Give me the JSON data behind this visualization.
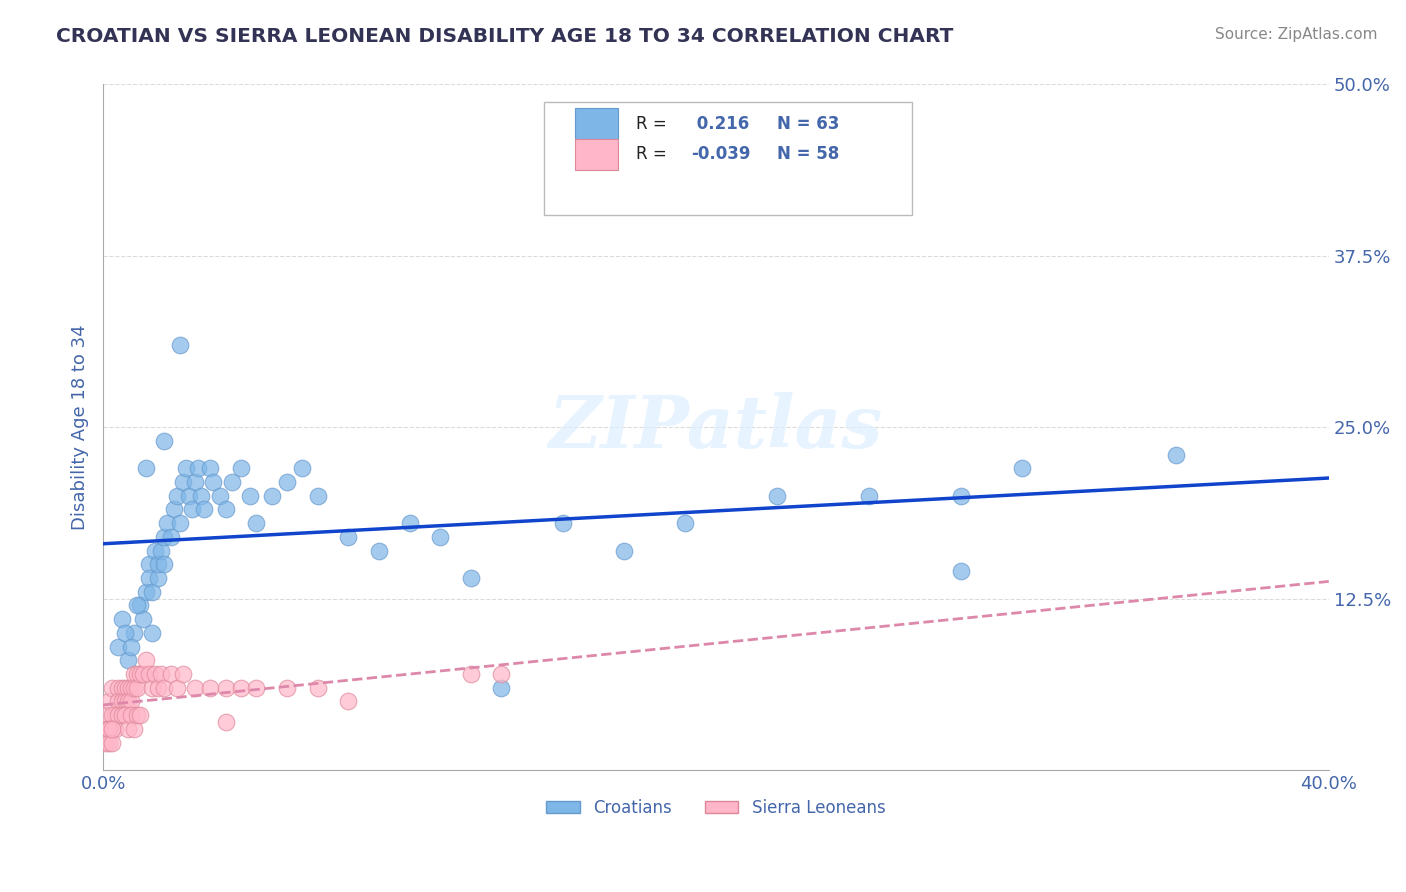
{
  "title": "CROATIAN VS SIERRA LEONEAN DISABILITY AGE 18 TO 34 CORRELATION CHART",
  "source_text": "Source: ZipAtlas.com",
  "xlabel": "",
  "ylabel": "Disability Age 18 to 34",
  "xlim": [
    0.0,
    0.4
  ],
  "ylim": [
    0.0,
    0.5
  ],
  "xticks": [
    0.0,
    0.1,
    0.2,
    0.3,
    0.4
  ],
  "xticklabels": [
    "0.0%",
    "",
    "",
    "",
    "40.0%"
  ],
  "yticks": [
    0.0,
    0.125,
    0.25,
    0.375,
    0.5
  ],
  "yticklabels": [
    "",
    "12.5%",
    "25.0%",
    "37.5%",
    "50.0%"
  ],
  "croatian_color": "#7EB6E8",
  "croatian_edge_color": "#6699CC",
  "sierra_color": "#FFB6C8",
  "sierra_edge_color": "#DD8899",
  "trend_croatian_color": "#1144CC",
  "trend_sierra_color": "#DD88AA",
  "R_croatian": 0.216,
  "N_croatian": 63,
  "R_sierra": -0.039,
  "N_sierra": 58,
  "background_color": "#FFFFFF",
  "grid_color": "#CCCCCC",
  "title_color": "#333355",
  "label_color": "#4466AA",
  "croatian_x": [
    0.008,
    0.01,
    0.012,
    0.013,
    0.014,
    0.015,
    0.015,
    0.016,
    0.017,
    0.018,
    0.018,
    0.019,
    0.02,
    0.02,
    0.021,
    0.022,
    0.023,
    0.024,
    0.025,
    0.026,
    0.027,
    0.028,
    0.029,
    0.03,
    0.031,
    0.032,
    0.033,
    0.035,
    0.036,
    0.038,
    0.04,
    0.042,
    0.045,
    0.048,
    0.05,
    0.055,
    0.06,
    0.065,
    0.07,
    0.08,
    0.09,
    0.1,
    0.11,
    0.12,
    0.13,
    0.15,
    0.17,
    0.19,
    0.22,
    0.25,
    0.28,
    0.3,
    0.005,
    0.006,
    0.007,
    0.009,
    0.011,
    0.016,
    0.014,
    0.02,
    0.025,
    0.35,
    0.28
  ],
  "croatian_y": [
    0.08,
    0.1,
    0.12,
    0.11,
    0.13,
    0.15,
    0.14,
    0.13,
    0.16,
    0.14,
    0.15,
    0.16,
    0.17,
    0.15,
    0.18,
    0.17,
    0.19,
    0.2,
    0.18,
    0.21,
    0.22,
    0.2,
    0.19,
    0.21,
    0.22,
    0.2,
    0.19,
    0.22,
    0.21,
    0.2,
    0.19,
    0.21,
    0.22,
    0.2,
    0.18,
    0.2,
    0.21,
    0.22,
    0.2,
    0.17,
    0.16,
    0.18,
    0.17,
    0.14,
    0.06,
    0.18,
    0.16,
    0.18,
    0.2,
    0.2,
    0.2,
    0.22,
    0.09,
    0.11,
    0.1,
    0.09,
    0.12,
    0.1,
    0.22,
    0.24,
    0.31,
    0.23,
    0.145
  ],
  "sierra_x": [
    0.001,
    0.002,
    0.003,
    0.004,
    0.005,
    0.005,
    0.006,
    0.006,
    0.007,
    0.007,
    0.008,
    0.008,
    0.009,
    0.009,
    0.01,
    0.01,
    0.011,
    0.011,
    0.012,
    0.013,
    0.014,
    0.015,
    0.016,
    0.017,
    0.018,
    0.019,
    0.02,
    0.022,
    0.024,
    0.026,
    0.03,
    0.035,
    0.04,
    0.045,
    0.05,
    0.06,
    0.07,
    0.08,
    0.12,
    0.13,
    0.001,
    0.002,
    0.003,
    0.004,
    0.005,
    0.006,
    0.007,
    0.008,
    0.009,
    0.01,
    0.011,
    0.012,
    0.001,
    0.002,
    0.002,
    0.003,
    0.003,
    0.04
  ],
  "sierra_y": [
    0.04,
    0.05,
    0.06,
    0.04,
    0.06,
    0.05,
    0.06,
    0.05,
    0.06,
    0.05,
    0.06,
    0.05,
    0.06,
    0.05,
    0.07,
    0.06,
    0.07,
    0.06,
    0.07,
    0.07,
    0.08,
    0.07,
    0.06,
    0.07,
    0.06,
    0.07,
    0.06,
    0.07,
    0.06,
    0.07,
    0.06,
    0.06,
    0.06,
    0.06,
    0.06,
    0.06,
    0.06,
    0.05,
    0.07,
    0.07,
    0.03,
    0.03,
    0.04,
    0.03,
    0.04,
    0.04,
    0.04,
    0.03,
    0.04,
    0.03,
    0.04,
    0.04,
    0.02,
    0.02,
    0.03,
    0.02,
    0.03,
    0.035
  ],
  "watermark": "ZIPatlas",
  "marker_size": 12,
  "marker_alpha": 0.7
}
